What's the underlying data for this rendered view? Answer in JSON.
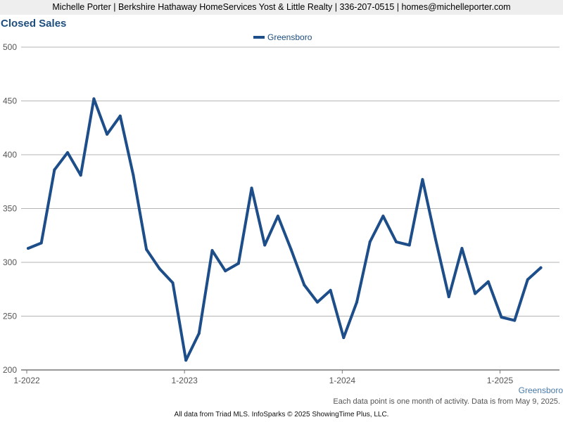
{
  "header": {
    "text": "Michelle Porter | Berkshire Hathaway HomeServices Yost & Little Realty | 336-207-0515 | homes@michelleporter.com"
  },
  "chart_data": {
    "type": "line",
    "title": "Closed Sales",
    "xlabel": "",
    "ylabel": "",
    "ylim": [
      200,
      500
    ],
    "y_ticks": [
      200,
      250,
      300,
      350,
      400,
      450,
      500
    ],
    "x_tick_labels": [
      "1-2022",
      "1-2023",
      "1-2024",
      "1-2025"
    ],
    "x_tick_month_index": [
      0,
      12,
      24,
      36
    ],
    "grid": true,
    "legend_position": "top-center",
    "series": [
      {
        "name": "Greensboro",
        "color": "#1d4e89",
        "values": [
          313,
          318,
          386,
          402,
          381,
          452,
          419,
          436,
          381,
          312,
          294,
          281,
          209,
          234,
          311,
          292,
          299,
          369,
          316,
          343,
          312,
          279,
          263,
          274,
          230,
          263,
          319,
          343,
          319,
          316,
          377,
          321,
          268,
          313,
          271,
          282,
          249,
          246,
          284,
          295
        ]
      }
    ]
  },
  "series_label": "Greensboro",
  "note": "Each data point is one month of activity. Data is from May 9, 2025.",
  "footer": "All data from Triad MLS. InfoSparks © 2025 ShowingTime Plus, LLC."
}
